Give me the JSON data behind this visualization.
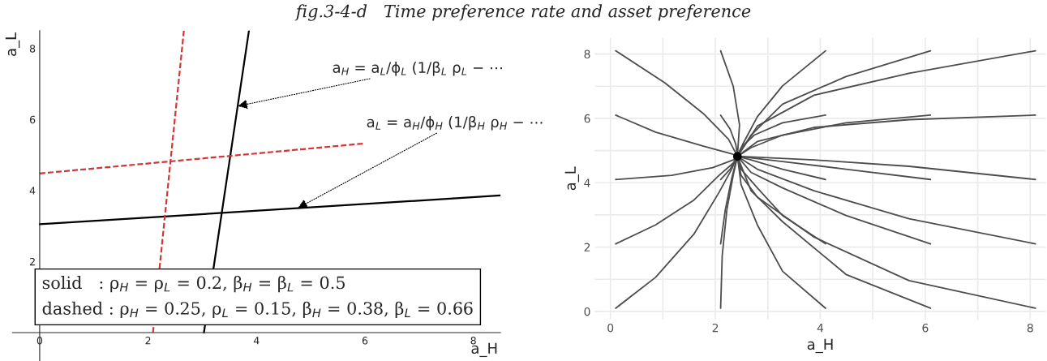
{
  "chart_data": [
    {
      "type": "line",
      "title": "fig.3-4-d   Time preference rate and asset preference",
      "xlabel": "a_H",
      "ylabel": "a_L",
      "xlim": [
        -0.5,
        8.5
      ],
      "ylim": [
        -0.8,
        8.5
      ],
      "xticks": [
        0,
        2,
        4,
        6,
        8
      ],
      "yticks": [
        2,
        4,
        6,
        8
      ],
      "grid": false,
      "series": [
        {
          "color": "#000000",
          "line_style": "solid",
          "x": [
            3.03,
            3.86
          ],
          "values": [
            0,
            8.5
          ]
        },
        {
          "color": "#000000",
          "line_style": "solid",
          "x": [
            0,
            8.5
          ],
          "values": [
            3.05,
            3.86
          ]
        },
        {
          "color": "#d03838",
          "line_style": "dashed",
          "x": [
            2.09,
            2.66
          ],
          "values": [
            0,
            8.5
          ]
        },
        {
          "color": "#d03838",
          "line_style": "dashed",
          "x": [
            0,
            5.96
          ],
          "values": [
            4.48,
            5.32
          ]
        }
      ],
      "annotations": [
        "a$_{H}$ = a$_{L}$/ϕ$_{L}$ (1/β$_{L}$ ρ$_{L}$ − ⋯",
        "a$_{L}$ = a$_{H}$/ϕ$_{H}$ (1/β$_{H}$ ρ$_{H}$ − ⋯",
        "solid   : ρ$_{H}$ = ρ$_{L}$ = 0.2, β$_{H}$ = β$_{L}$ = 0.5",
        "dashed : ρ$_{H}$ = 0.25, ρ$_{L}$ = 0.15, β$_{H}$ = 0.38, β$_{L}$ = 0.66"
      ]
    },
    {
      "type": "line",
      "xlabel": "a_H",
      "ylabel": "a_L",
      "xlim": [
        -0.3,
        8.3
      ],
      "ylim": [
        -0.25,
        8.5
      ],
      "grid": true,
      "xticks": [
        0,
        {
          "value": 1,
          "label": null
        },
        2,
        {
          "value": 3,
          "label": null
        },
        4,
        {
          "value": 5,
          "label": null
        },
        6,
        {
          "value": 7,
          "label": null
        },
        8
      ],
      "yticks": [
        0,
        {
          "value": 1,
          "label": null
        },
        2,
        {
          "value": 3,
          "label": null
        },
        4,
        {
          "value": 5,
          "label": null
        },
        6,
        {
          "value": 7,
          "label": null
        },
        8
      ],
      "series": [
        {
          "color": "#4d4d4d",
          "x": [
            0.1,
            1.04,
            1.77,
            2.25,
            2.42
          ],
          "values": [
            8.1,
            7.1,
            6.15,
            5.35,
            4.82
          ]
        },
        {
          "color": "#4d4d4d",
          "x": [
            0.1,
            0.86,
            1.77,
            2.31,
            2.42
          ],
          "values": [
            6.1,
            5.57,
            5.14,
            4.9,
            4.82
          ]
        },
        {
          "color": "#4d4d4d",
          "x": [
            0.1,
            1.17,
            1.95,
            2.34,
            2.42
          ],
          "values": [
            4.1,
            4.23,
            4.47,
            4.71,
            4.82
          ]
        },
        {
          "color": "#4d4d4d",
          "x": [
            0.1,
            0.86,
            1.59,
            2.07,
            2.34,
            2.42
          ],
          "values": [
            2.1,
            2.69,
            3.46,
            4.23,
            4.61,
            4.82
          ]
        },
        {
          "color": "#4d4d4d",
          "x": [
            0.1,
            0.86,
            1.59,
            2.07,
            2.31,
            2.42
          ],
          "values": [
            0.1,
            1.06,
            2.4,
            3.7,
            4.42,
            4.82
          ]
        },
        {
          "color": "#4d4d4d",
          "x": [
            2.1,
            2.34,
            2.46,
            2.42
          ],
          "values": [
            8.1,
            7.0,
            5.8,
            4.82
          ]
        },
        {
          "color": "#4d4d4d",
          "x": [
            2.1,
            2.28,
            2.39,
            2.42
          ],
          "values": [
            6.1,
            5.67,
            5.19,
            4.82
          ]
        },
        {
          "color": "#4d4d4d",
          "x": [
            2.1,
            2.28,
            2.42
          ],
          "values": [
            4.1,
            4.42,
            4.82
          ]
        },
        {
          "color": "#4d4d4d",
          "x": [
            2.1,
            2.19,
            2.31,
            2.42
          ],
          "values": [
            2.1,
            3.17,
            4.13,
            4.82
          ]
        },
        {
          "color": "#4d4d4d",
          "x": [
            2.1,
            2.13,
            2.22,
            2.34,
            2.42
          ],
          "values": [
            0.1,
            1.73,
            3.17,
            4.23,
            4.82
          ]
        },
        {
          "color": "#4d4d4d",
          "x": [
            4.1,
            3.28,
            2.8,
            2.52,
            2.42
          ],
          "values": [
            8.1,
            7.01,
            6.05,
            5.19,
            4.82
          ]
        },
        {
          "color": "#4d4d4d",
          "x": [
            4.1,
            3.28,
            2.74,
            2.49,
            2.42
          ],
          "values": [
            6.1,
            5.86,
            5.48,
            5.09,
            4.82
          ]
        },
        {
          "color": "#4d4d4d",
          "x": [
            4.1,
            3.28,
            2.68,
            2.42
          ],
          "values": [
            4.1,
            4.42,
            4.71,
            4.82
          ]
        },
        {
          "color": "#4d4d4d",
          "x": [
            4.1,
            3.28,
            2.8,
            2.49,
            2.42
          ],
          "values": [
            2.1,
            2.98,
            3.84,
            4.42,
            4.82
          ]
        },
        {
          "color": "#4d4d4d",
          "x": [
            4.1,
            3.28,
            2.8,
            2.49,
            2.42
          ],
          "values": [
            0.1,
            1.25,
            2.69,
            3.94,
            4.82
          ]
        },
        {
          "color": "#4d4d4d",
          "x": [
            6.1,
            4.49,
            3.28,
            2.68,
            2.42
          ],
          "values": [
            8.1,
            7.3,
            6.44,
            5.48,
            4.82
          ]
        },
        {
          "color": "#4d4d4d",
          "x": [
            6.1,
            4.49,
            3.28,
            2.68,
            2.42
          ],
          "values": [
            6.1,
            5.86,
            5.48,
            5.09,
            4.82
          ]
        },
        {
          "color": "#4d4d4d",
          "x": [
            6.1,
            4.49,
            3.28,
            2.42
          ],
          "values": [
            4.1,
            4.42,
            4.66,
            4.82
          ]
        },
        {
          "color": "#4d4d4d",
          "x": [
            6.1,
            4.49,
            3.28,
            2.68,
            2.42
          ],
          "values": [
            2.1,
            2.98,
            3.84,
            4.32,
            4.82
          ]
        },
        {
          "color": "#4d4d4d",
          "x": [
            6.1,
            4.49,
            3.28,
            2.68,
            2.42
          ],
          "values": [
            0.1,
            1.15,
            2.79,
            3.75,
            4.82
          ]
        },
        {
          "color": "#4d4d4d",
          "x": [
            8.1,
            5.69,
            3.88,
            2.8,
            2.42
          ],
          "values": [
            8.1,
            7.4,
            6.72,
            5.76,
            4.82
          ]
        },
        {
          "color": "#4d4d4d",
          "x": [
            8.1,
            5.69,
            3.88,
            2.8,
            2.42
          ],
          "values": [
            6.1,
            5.96,
            5.72,
            5.28,
            4.82
          ]
        },
        {
          "color": "#4d4d4d",
          "x": [
            8.1,
            5.69,
            3.88,
            2.42
          ],
          "values": [
            4.1,
            4.51,
            4.71,
            4.82
          ]
        },
        {
          "color": "#4d4d4d",
          "x": [
            8.1,
            5.69,
            3.88,
            2.8,
            2.42
          ],
          "values": [
            2.1,
            2.88,
            3.75,
            4.42,
            4.82
          ]
        },
        {
          "color": "#4d4d4d",
          "x": [
            8.1,
            5.69,
            3.88,
            2.8,
            2.49,
            2.42
          ],
          "values": [
            0.1,
            0.96,
            2.31,
            3.55,
            4.23,
            4.82
          ]
        },
        {
          "type": "scatter",
          "color": "#000000",
          "marker": "circle",
          "x": [
            2.42
          ],
          "values": [
            4.82
          ]
        }
      ]
    }
  ]
}
